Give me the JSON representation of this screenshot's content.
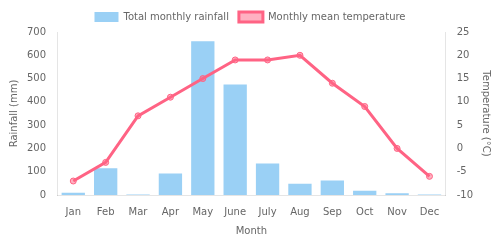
{
  "chart_data": {
    "type": "bar",
    "xlabel": "Month",
    "ylabel": "Rainfall (mm)",
    "y2label": "Temperature (°C)",
    "categories": [
      "Jan",
      "Feb",
      "Mar",
      "Apr",
      "May",
      "June",
      "July",
      "Aug",
      "Sep",
      "Oct",
      "Nov",
      "Dec"
    ],
    "series": [
      {
        "name": "Total monthly rainfall",
        "type": "bar",
        "values": [
          10,
          115,
          2,
          92,
          660,
          475,
          135,
          48,
          62,
          18,
          8,
          2
        ]
      },
      {
        "name": "Monthly mean temperature",
        "type": "line",
        "axis": "y2",
        "marker": "circle",
        "values": [
          -7,
          -3,
          7,
          11,
          15,
          19,
          19,
          20,
          14,
          9,
          0,
          -6
        ]
      }
    ],
    "ylim": [
      0,
      700
    ],
    "yticks": [
      0,
      100,
      200,
      300,
      400,
      500,
      600,
      700
    ],
    "y2lim": [
      -10,
      25
    ],
    "y2ticks": [
      -10,
      -5,
      0,
      5,
      10,
      15,
      20,
      25
    ],
    "grid": false,
    "legend": "top"
  }
}
